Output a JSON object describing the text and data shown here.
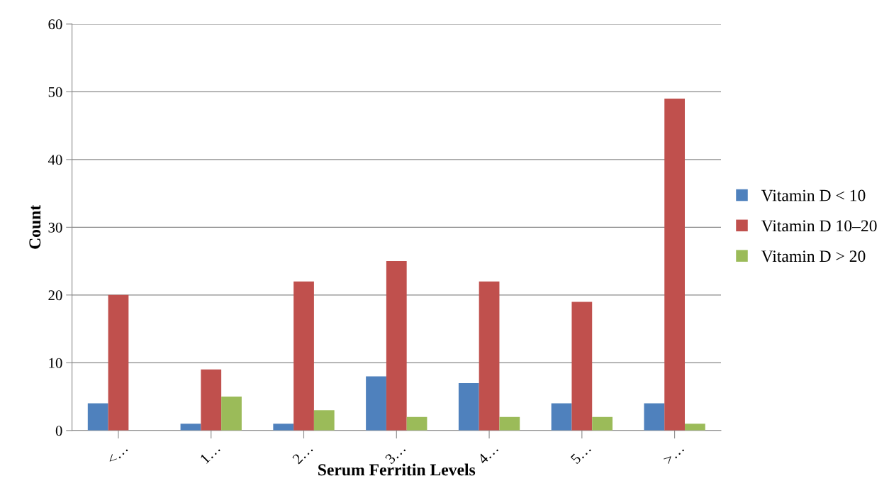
{
  "chart_data": {
    "type": "bar",
    "xlabel": "Serum Ferritin Levels",
    "ylabel": "Count",
    "categories": [
      "<…",
      "1…",
      "2…",
      "3…",
      "4…",
      "5…",
      ">…"
    ],
    "series": [
      {
        "name": "Vitamin D < 10",
        "color": "#4f81bd",
        "values": [
          4,
          1,
          1,
          8,
          7,
          4,
          4
        ]
      },
      {
        "name": "Vitamin D 10–20",
        "color": "#c0504d",
        "values": [
          20,
          9,
          22,
          25,
          22,
          19,
          49
        ]
      },
      {
        "name": "Vitamin D > 20",
        "color": "#9bbb59",
        "values": [
          0,
          5,
          3,
          2,
          2,
          2,
          1
        ]
      }
    ],
    "ylim": [
      0,
      60
    ],
    "yticks": [
      0,
      10,
      20,
      30,
      40,
      50,
      60
    ],
    "grid": "y",
    "legend": "right"
  }
}
